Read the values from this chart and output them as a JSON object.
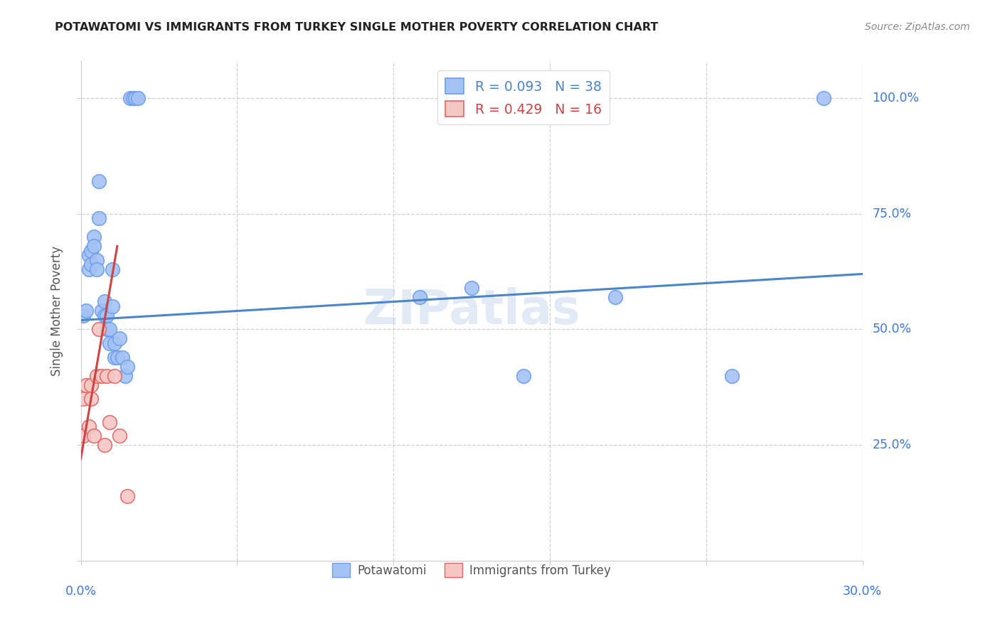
{
  "title": "POTAWATOMI VS IMMIGRANTS FROM TURKEY SINGLE MOTHER POVERTY CORRELATION CHART",
  "source": "Source: ZipAtlas.com",
  "ylabel": "Single Mother Poverty",
  "xmin": 0.0,
  "xmax": 0.3,
  "ymin": 0.0,
  "ymax": 1.08,
  "legend_r1": "R = 0.093",
  "legend_n1": "N = 38",
  "legend_r2": "R = 0.429",
  "legend_n2": "N = 16",
  "legend_label1": "Potawatomi",
  "legend_label2": "Immigrants from Turkey",
  "blue_fill": "#a4c2f4",
  "blue_edge": "#6d9eeb",
  "pink_fill": "#f4c7c3",
  "pink_edge": "#e06666",
  "blue_line": "#4a86c8",
  "pink_line": "#cc4444",
  "watermark": "ZIPatlas",
  "blue_r": 0.093,
  "pink_r": 0.429,
  "potawatomi_x": [
    0.001,
    0.002,
    0.003,
    0.003,
    0.004,
    0.004,
    0.005,
    0.005,
    0.006,
    0.006,
    0.007,
    0.007,
    0.008,
    0.009,
    0.009,
    0.01,
    0.01,
    0.011,
    0.011,
    0.012,
    0.012,
    0.013,
    0.013,
    0.014,
    0.015,
    0.016,
    0.017,
    0.018,
    0.019,
    0.02,
    0.021,
    0.022,
    0.13,
    0.15,
    0.17,
    0.205,
    0.25,
    0.285
  ],
  "potawatomi_y": [
    0.53,
    0.54,
    0.66,
    0.63,
    0.67,
    0.64,
    0.7,
    0.68,
    0.65,
    0.63,
    0.82,
    0.74,
    0.54,
    0.56,
    0.53,
    0.53,
    0.5,
    0.5,
    0.47,
    0.63,
    0.55,
    0.47,
    0.44,
    0.44,
    0.48,
    0.44,
    0.4,
    0.42,
    1.0,
    1.0,
    1.0,
    1.0,
    0.57,
    0.59,
    0.4,
    0.57,
    0.4,
    1.0
  ],
  "turkey_x": [
    0.001,
    0.001,
    0.002,
    0.003,
    0.004,
    0.004,
    0.005,
    0.006,
    0.007,
    0.008,
    0.009,
    0.01,
    0.011,
    0.013,
    0.015,
    0.018
  ],
  "turkey_y": [
    0.35,
    0.27,
    0.38,
    0.29,
    0.38,
    0.35,
    0.27,
    0.4,
    0.5,
    0.4,
    0.25,
    0.4,
    0.3,
    0.4,
    0.27,
    0.14
  ]
}
